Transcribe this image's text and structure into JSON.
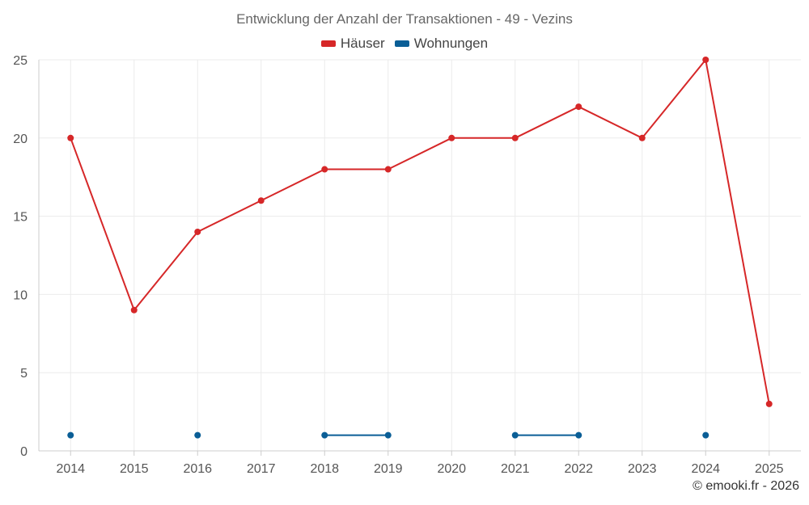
{
  "chart_data": {
    "type": "line",
    "title": "Entwicklung der Anzahl der Transaktionen - 49 - Vezins",
    "xlabel": "",
    "ylabel": "",
    "categories": [
      "2014",
      "2015",
      "2016",
      "2017",
      "2018",
      "2019",
      "2020",
      "2021",
      "2022",
      "2023",
      "2024",
      "2025"
    ],
    "ylim": [
      0,
      25
    ],
    "yticks": [
      0,
      5,
      10,
      15,
      20,
      25
    ],
    "grid": true,
    "legend": "top-center",
    "series": [
      {
        "name": "Häuser",
        "color": "#d62728",
        "values": [
          20,
          9,
          14,
          16,
          18,
          18,
          20,
          20,
          22,
          20,
          25,
          3
        ]
      },
      {
        "name": "Wohnungen",
        "color": "#0a5e96",
        "values": [
          1,
          null,
          1,
          null,
          1,
          1,
          null,
          1,
          1,
          null,
          1,
          null
        ]
      }
    ]
  },
  "credit": "© emooki.fr - 2026"
}
